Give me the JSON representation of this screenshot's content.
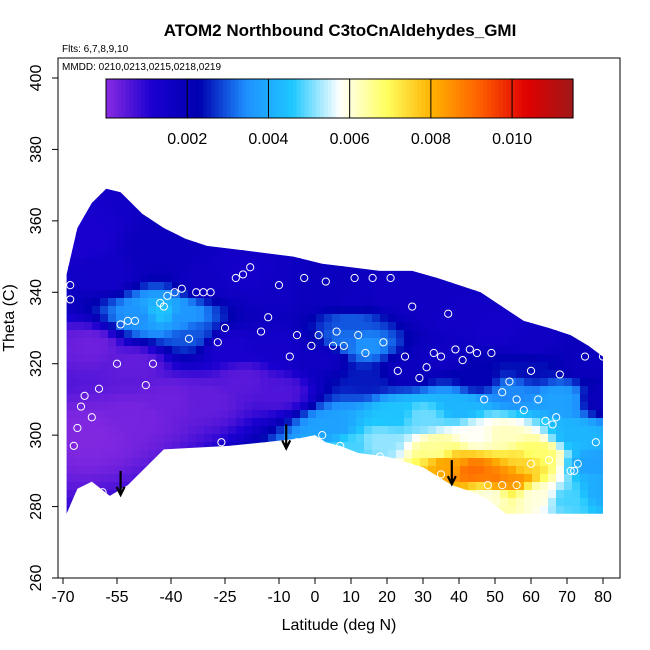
{
  "chart_data": {
    "type": "heatmap",
    "title": "ATOM2 Northbound C3toCnAldehydes_GMI",
    "flights_label": "Flts: 6,7,8,9,10",
    "dates_label": "MMDD: 0210,0213,0215,0218,0219",
    "xlabel": "Latitude (deg N)",
    "ylabel": "Theta (C)",
    "xlim": [
      -70,
      80
    ],
    "ylim": [
      260,
      400
    ],
    "x_ticks": [
      -70,
      -55,
      -40,
      -25,
      -10,
      0,
      10,
      20,
      30,
      40,
      50,
      60,
      70,
      80
    ],
    "x_tick_labels": [
      "-70",
      "-55",
      "-40",
      "-25",
      "-10",
      "0",
      "10",
      "20",
      "30",
      "40",
      "50",
      "60",
      "70",
      "80"
    ],
    "y_ticks": [
      260,
      280,
      300,
      320,
      340,
      360,
      380,
      400
    ],
    "y_tick_labels": [
      "260",
      "280",
      "300",
      "320",
      "340",
      "360",
      "380",
      "400"
    ],
    "colorbar": {
      "min": 0.0,
      "max": 0.0115,
      "ticks": [
        0.002,
        0.004,
        0.006,
        0.008,
        0.01
      ],
      "tick_labels": [
        "0.002",
        "0.004",
        "0.006",
        "0.008",
        "0.010"
      ],
      "colors": [
        "#8a2be2",
        "#1a00d0",
        "#0000b0",
        "#1e90ff",
        "#1ec8ff",
        "#ffffff",
        "#ffff60",
        "#ffb000",
        "#ff6000",
        "#e00000",
        "#a01818"
      ]
    },
    "boundary": [
      [
        -69,
        278
      ],
      [
        -66,
        285
      ],
      [
        -62,
        287
      ],
      [
        -57,
        283
      ],
      [
        -52,
        286
      ],
      [
        -47,
        291
      ],
      [
        -42,
        296
      ],
      [
        -33,
        296.5
      ],
      [
        -24,
        297
      ],
      [
        -14,
        298
      ],
      [
        -5,
        299
      ],
      [
        0,
        300
      ],
      [
        3,
        298
      ],
      [
        7,
        297
      ],
      [
        12,
        295
      ],
      [
        20,
        294
      ],
      [
        30,
        291
      ],
      [
        38,
        286
      ],
      [
        44,
        284
      ],
      [
        48,
        282
      ],
      [
        53,
        278
      ],
      [
        80,
        278
      ],
      [
        80,
        322
      ],
      [
        76,
        325
      ],
      [
        71,
        328
      ],
      [
        65,
        330
      ],
      [
        58,
        332
      ],
      [
        52,
        336
      ],
      [
        46,
        340
      ],
      [
        40,
        342
      ],
      [
        34,
        344
      ],
      [
        27,
        346
      ],
      [
        18,
        346
      ],
      [
        10,
        347
      ],
      [
        2,
        348
      ],
      [
        -6,
        350
      ],
      [
        -14,
        351
      ],
      [
        -22,
        352
      ],
      [
        -30,
        353
      ],
      [
        -36,
        355
      ],
      [
        -42,
        358
      ],
      [
        -48,
        362
      ],
      [
        -54,
        368
      ],
      [
        -58,
        369
      ],
      [
        -62,
        365
      ],
      [
        -66,
        358
      ],
      [
        -69,
        345
      ]
    ],
    "field": [
      {
        "lat": -62,
        "theta": 300,
        "value": 0.0001
      },
      {
        "lat": -50,
        "theta": 305,
        "value": 0.0002
      },
      {
        "lat": -40,
        "theta": 310,
        "value": 0.0003
      },
      {
        "lat": -30,
        "theta": 310,
        "value": 0.0004
      },
      {
        "lat": -62,
        "theta": 325,
        "value": 0.0003
      },
      {
        "lat": -50,
        "theta": 320,
        "value": 0.0004
      },
      {
        "lat": -20,
        "theta": 315,
        "value": 0.0005
      },
      {
        "lat": -10,
        "theta": 312,
        "value": 0.0006
      },
      {
        "lat": -58,
        "theta": 345,
        "value": 0.0015
      },
      {
        "lat": -64,
        "theta": 355,
        "value": 0.0012
      },
      {
        "lat": -48,
        "theta": 333,
        "value": 0.0035
      },
      {
        "lat": -43,
        "theta": 334,
        "value": 0.0045
      },
      {
        "lat": -37,
        "theta": 333,
        "value": 0.0036
      },
      {
        "lat": -34,
        "theta": 328,
        "value": 0.003
      },
      {
        "lat": -45,
        "theta": 352,
        "value": 0.0018
      },
      {
        "lat": -30,
        "theta": 343,
        "value": 0.0016
      },
      {
        "lat": -20,
        "theta": 345,
        "value": 0.0014
      },
      {
        "lat": -10,
        "theta": 340,
        "value": 0.0016
      },
      {
        "lat": 0,
        "theta": 340,
        "value": 0.0018
      },
      {
        "lat": 10,
        "theta": 338,
        "value": 0.0017
      },
      {
        "lat": 20,
        "theta": 340,
        "value": 0.0016
      },
      {
        "lat": 30,
        "theta": 337,
        "value": 0.0016
      },
      {
        "lat": 40,
        "theta": 333,
        "value": 0.0015
      },
      {
        "lat": 50,
        "theta": 330,
        "value": 0.0014
      },
      {
        "lat": 60,
        "theta": 326,
        "value": 0.0016
      },
      {
        "lat": 75,
        "theta": 320,
        "value": 0.0018
      },
      {
        "lat": 80,
        "theta": 310,
        "value": 0.0019
      },
      {
        "lat": -25,
        "theta": 325,
        "value": 0.0012
      },
      {
        "lat": -10,
        "theta": 325,
        "value": 0.0014
      },
      {
        "lat": 3,
        "theta": 322,
        "value": 0.0016
      },
      {
        "lat": 8,
        "theta": 326,
        "value": 0.0032
      },
      {
        "lat": 14,
        "theta": 325,
        "value": 0.0035
      },
      {
        "lat": 10,
        "theta": 332,
        "value": 0.003
      },
      {
        "lat": 15,
        "theta": 315,
        "value": 0.0025
      },
      {
        "lat": 25,
        "theta": 318,
        "value": 0.0018
      },
      {
        "lat": 35,
        "theta": 322,
        "value": 0.0016
      },
      {
        "lat": 45,
        "theta": 316,
        "value": 0.0022
      },
      {
        "lat": 55,
        "theta": 312,
        "value": 0.0034
      },
      {
        "lat": 60,
        "theta": 318,
        "value": 0.0024
      },
      {
        "lat": 68,
        "theta": 310,
        "value": 0.0038
      },
      {
        "lat": 72,
        "theta": 300,
        "value": 0.0042
      },
      {
        "lat": 77,
        "theta": 292,
        "value": 0.0038
      },
      {
        "lat": 80,
        "theta": 284,
        "value": 0.004
      },
      {
        "lat": 5,
        "theta": 302,
        "value": 0.0038
      },
      {
        "lat": 10,
        "theta": 297,
        "value": 0.0048
      },
      {
        "lat": 18,
        "theta": 298,
        "value": 0.0052
      },
      {
        "lat": 22,
        "theta": 306,
        "value": 0.0045
      },
      {
        "lat": 30,
        "theta": 305,
        "value": 0.005
      },
      {
        "lat": 34,
        "theta": 296,
        "value": 0.0065
      },
      {
        "lat": 37,
        "theta": 292,
        "value": 0.0082
      },
      {
        "lat": 44,
        "theta": 290,
        "value": 0.009
      },
      {
        "lat": 50,
        "theta": 288,
        "value": 0.0088
      },
      {
        "lat": 55,
        "theta": 288,
        "value": 0.0085
      },
      {
        "lat": 58,
        "theta": 292,
        "value": 0.0075
      },
      {
        "lat": 62,
        "theta": 295,
        "value": 0.0068
      },
      {
        "lat": 62,
        "theta": 283,
        "value": 0.006
      },
      {
        "lat": 45,
        "theta": 300,
        "value": 0.0058
      },
      {
        "lat": 52,
        "theta": 300,
        "value": 0.0062
      },
      {
        "lat": 40,
        "theta": 308,
        "value": 0.0042
      },
      {
        "lat": 70,
        "theta": 282,
        "value": 0.0048
      },
      {
        "lat": 48,
        "theta": 283,
        "value": 0.006
      }
    ],
    "observations": [
      {
        "lat": -68,
        "theta": 342
      },
      {
        "lat": -68,
        "theta": 338
      },
      {
        "lat": -67,
        "theta": 297
      },
      {
        "lat": -66,
        "theta": 302
      },
      {
        "lat": -65,
        "theta": 308
      },
      {
        "lat": -64,
        "theta": 311
      },
      {
        "lat": -62,
        "theta": 305
      },
      {
        "lat": -60,
        "theta": 313
      },
      {
        "lat": -62,
        "theta": 282
      },
      {
        "lat": -59,
        "theta": 284
      },
      {
        "lat": -55,
        "theta": 320
      },
      {
        "lat": -54,
        "theta": 331
      },
      {
        "lat": -52,
        "theta": 332
      },
      {
        "lat": -50,
        "theta": 332
      },
      {
        "lat": -47,
        "theta": 314
      },
      {
        "lat": -45,
        "theta": 320
      },
      {
        "lat": -43,
        "theta": 337
      },
      {
        "lat": -42,
        "theta": 336
      },
      {
        "lat": -41,
        "theta": 339
      },
      {
        "lat": -39,
        "theta": 340
      },
      {
        "lat": -37,
        "theta": 341
      },
      {
        "lat": -35,
        "theta": 327
      },
      {
        "lat": -33,
        "theta": 340
      },
      {
        "lat": -31,
        "theta": 340
      },
      {
        "lat": -29,
        "theta": 340
      },
      {
        "lat": -27,
        "theta": 326
      },
      {
        "lat": -25,
        "theta": 330
      },
      {
        "lat": -22,
        "theta": 344
      },
      {
        "lat": -20,
        "theta": 345
      },
      {
        "lat": -18,
        "theta": 347
      },
      {
        "lat": -15,
        "theta": 329
      },
      {
        "lat": -13,
        "theta": 333
      },
      {
        "lat": -10,
        "theta": 342
      },
      {
        "lat": -7,
        "theta": 322
      },
      {
        "lat": -5,
        "theta": 328
      },
      {
        "lat": -3,
        "theta": 344
      },
      {
        "lat": -1,
        "theta": 325
      },
      {
        "lat": 1,
        "theta": 328
      },
      {
        "lat": 3,
        "theta": 343
      },
      {
        "lat": 5,
        "theta": 325
      },
      {
        "lat": 6,
        "theta": 329
      },
      {
        "lat": 8,
        "theta": 325
      },
      {
        "lat": 11,
        "theta": 344
      },
      {
        "lat": 12,
        "theta": 328
      },
      {
        "lat": 14,
        "theta": 323
      },
      {
        "lat": 16,
        "theta": 344
      },
      {
        "lat": 19,
        "theta": 326
      },
      {
        "lat": 21,
        "theta": 344
      },
      {
        "lat": 23,
        "theta": 318
      },
      {
        "lat": 25,
        "theta": 322
      },
      {
        "lat": 27,
        "theta": 336
      },
      {
        "lat": 29,
        "theta": 316
      },
      {
        "lat": 31,
        "theta": 319
      },
      {
        "lat": 33,
        "theta": 323
      },
      {
        "lat": 35,
        "theta": 322
      },
      {
        "lat": 37,
        "theta": 334
      },
      {
        "lat": 39,
        "theta": 324
      },
      {
        "lat": 41,
        "theta": 321
      },
      {
        "lat": 43,
        "theta": 324
      },
      {
        "lat": 45,
        "theta": 323
      },
      {
        "lat": 47,
        "theta": 310
      },
      {
        "lat": 49,
        "theta": 323
      },
      {
        "lat": 52,
        "theta": 312
      },
      {
        "lat": 54,
        "theta": 315
      },
      {
        "lat": 56,
        "theta": 310
      },
      {
        "lat": 58,
        "theta": 307
      },
      {
        "lat": 60,
        "theta": 318
      },
      {
        "lat": 62,
        "theta": 310
      },
      {
        "lat": 64,
        "theta": 304
      },
      {
        "lat": 66,
        "theta": 303
      },
      {
        "lat": 68,
        "theta": 317
      },
      {
        "lat": 71,
        "theta": 290
      },
      {
        "lat": 73,
        "theta": 292
      },
      {
        "lat": 75,
        "theta": 322
      },
      {
        "lat": 78,
        "theta": 298
      },
      {
        "lat": 80,
        "theta": 322
      },
      {
        "lat": 18,
        "theta": 294
      },
      {
        "lat": 7,
        "theta": 297
      },
      {
        "lat": 2,
        "theta": 300
      },
      {
        "lat": -5,
        "theta": 298
      },
      {
        "lat": -26,
        "theta": 298
      },
      {
        "lat": -43,
        "theta": 285
      },
      {
        "lat": 35,
        "theta": 289
      },
      {
        "lat": 48,
        "theta": 286
      },
      {
        "lat": 52,
        "theta": 286
      },
      {
        "lat": 56,
        "theta": 286
      },
      {
        "lat": 60,
        "theta": 292
      },
      {
        "lat": 65,
        "theta": 293
      },
      {
        "lat": 67,
        "theta": 305
      },
      {
        "lat": 72,
        "theta": 290
      }
    ],
    "arrows": [
      {
        "lat": -54,
        "theta": 290
      },
      {
        "lat": -8,
        "theta": 303
      },
      {
        "lat": 38,
        "theta": 293
      }
    ]
  }
}
